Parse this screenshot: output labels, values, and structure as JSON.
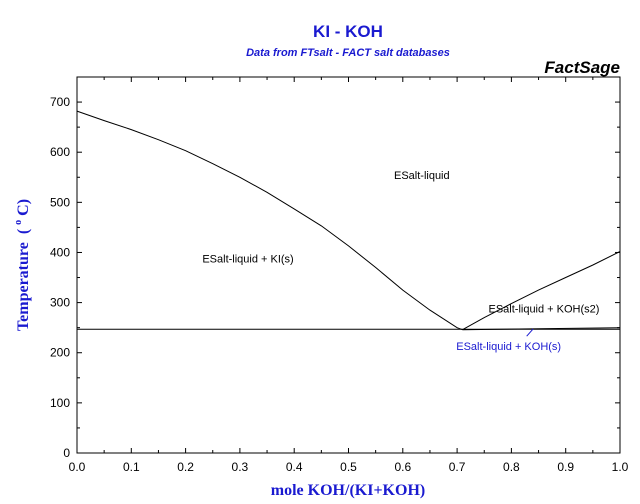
{
  "chart_data": {
    "type": "line",
    "title": "KI - KOH",
    "subtitle": "Data from FTsalt - FACT salt databases",
    "brand": "FactSage",
    "xlabel": "mole KOH/(KI+KOH)",
    "ylabel": "Temperature (°C)",
    "ylabel_main": "Temperature",
    "ylabel_degree": "o",
    "ylabel_unit": "C)",
    "ylabel_paren": "(",
    "xlim": [
      0,
      1
    ],
    "ylim": [
      0,
      750
    ],
    "x_ticks": [
      0.0,
      0.1,
      0.2,
      0.3,
      0.4,
      0.5,
      0.6,
      0.7,
      0.8,
      0.9,
      1.0
    ],
    "x_tick_labels": [
      "0.0",
      "0.1",
      "0.2",
      "0.3",
      "0.4",
      "0.5",
      "0.6",
      "0.7",
      "0.8",
      "0.9",
      "1.0"
    ],
    "y_ticks": [
      0,
      100,
      200,
      300,
      400,
      500,
      600,
      700
    ],
    "y_tick_labels": [
      "0",
      "100",
      "200",
      "300",
      "400",
      "500",
      "600",
      "700"
    ],
    "grid": false,
    "series": [
      {
        "points": [
          [
            0.0,
            682
          ],
          [
            0.05,
            663
          ],
          [
            0.1,
            645
          ],
          [
            0.15,
            625
          ],
          [
            0.2,
            603
          ],
          [
            0.25,
            577
          ],
          [
            0.3,
            550
          ],
          [
            0.35,
            520
          ],
          [
            0.4,
            487
          ],
          [
            0.45,
            453
          ],
          [
            0.5,
            413
          ],
          [
            0.55,
            370
          ],
          [
            0.6,
            325
          ],
          [
            0.65,
            285
          ],
          [
            0.7,
            250
          ],
          [
            0.71,
            246
          ]
        ]
      },
      {
        "points": [
          [
            0.71,
            246
          ],
          [
            0.75,
            270
          ],
          [
            0.8,
            298
          ],
          [
            0.85,
            325
          ],
          [
            0.9,
            350
          ],
          [
            0.95,
            375
          ],
          [
            1.0,
            402
          ]
        ]
      },
      {
        "points": [
          [
            0.0,
            247
          ],
          [
            1.0,
            247
          ]
        ]
      },
      {
        "points": [
          [
            0.71,
            246
          ],
          [
            1.0,
            250
          ]
        ]
      }
    ],
    "regions": [
      {
        "label": "ESalt-liquid",
        "x": 0.635,
        "y": 555
      },
      {
        "label": "ESalt-liquid + KI(s)",
        "x": 0.315,
        "y": 388
      },
      {
        "label": "ESalt-liquid + KOH(s2)",
        "x": 0.86,
        "y": 288
      },
      {
        "label": "ESalt-liquid + KOH(s)",
        "x": 0.795,
        "y": 213,
        "color": "#1a1ad0"
      }
    ]
  }
}
